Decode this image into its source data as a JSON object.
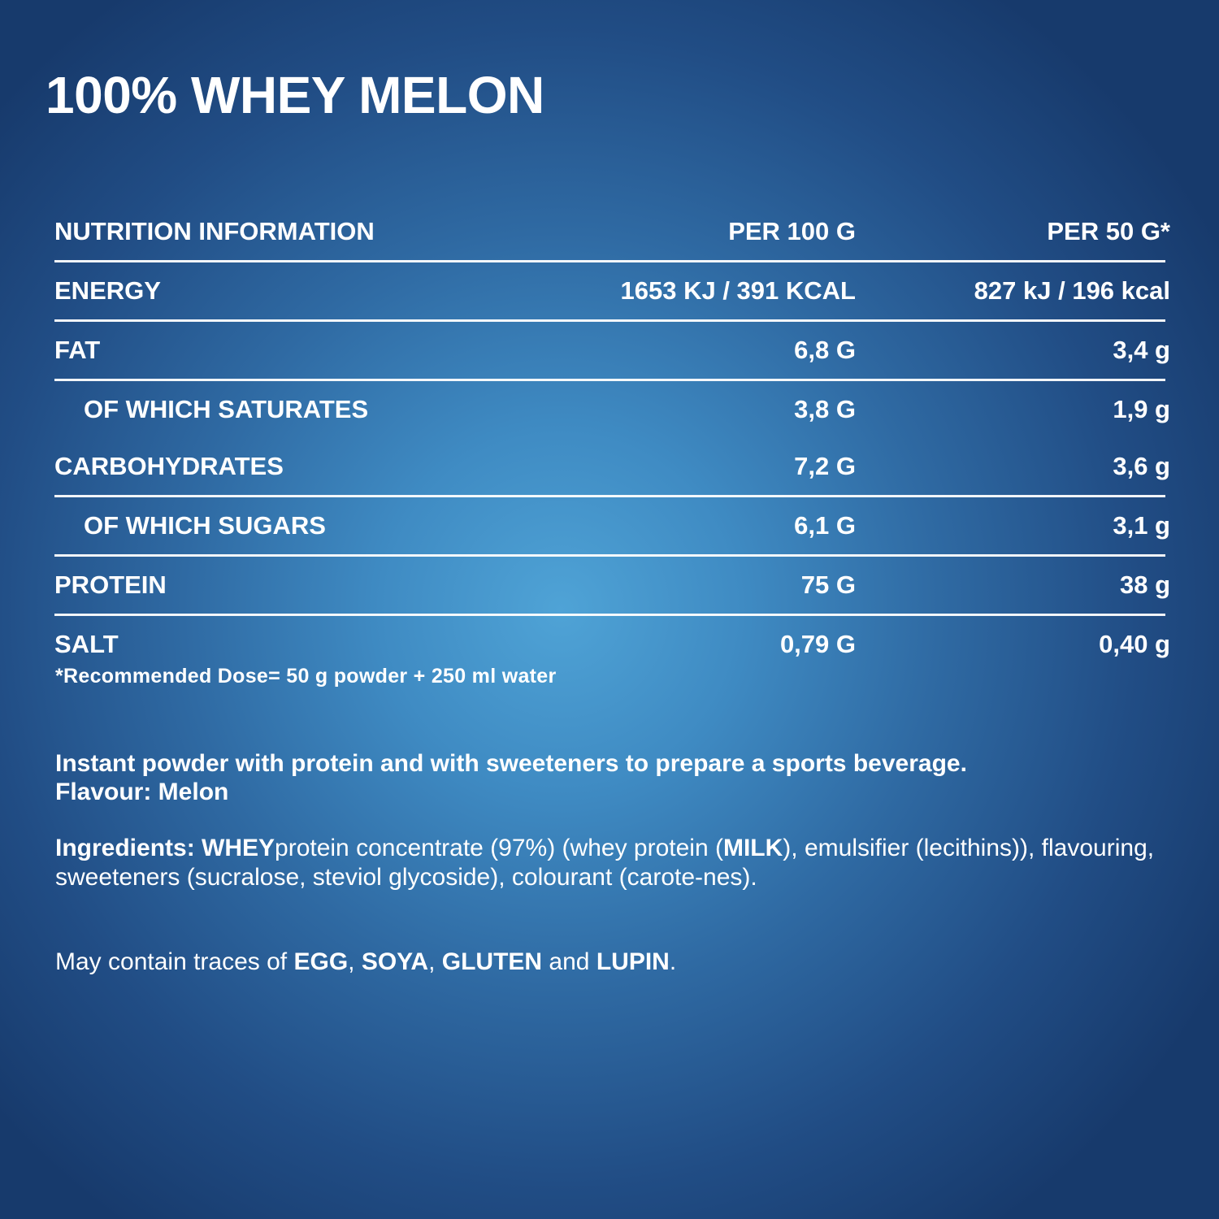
{
  "title": "100% WHEY MELON",
  "nutrition": {
    "header": {
      "label": "NUTRITION INFORMATION",
      "col1": "PER 100 G",
      "col2": "PER 50 G*"
    },
    "rows": [
      {
        "label": "ENERGY",
        "col1": "1653 KJ / 391 KCAL",
        "col2": "827 kJ / 196 kcal"
      },
      {
        "label": "FAT",
        "col1": "6,8 G",
        "col2": "3,4 g"
      },
      {
        "label": "OF WHICH SATURATES",
        "col1": "3,8 G",
        "col2": "1,9 g"
      },
      {
        "label": "CARBOHYDRATES",
        "col1": "7,2 G",
        "col2": "3,6 g"
      },
      {
        "label": "OF WHICH SUGARS",
        "col1": "6,1 G",
        "col2": "3,1 g"
      },
      {
        "label": "PROTEIN",
        "col1": "75 G",
        "col2": "38 g"
      },
      {
        "label": "SALT",
        "col1": "0,79 G",
        "col2": "0,40 g"
      }
    ]
  },
  "footnote": "*Recommended Dose= 50 g powder + 250 ml water",
  "description": {
    "line1": "Instant powder with protein and with sweeteners to prepare a sports beverage.",
    "line2": "Flavour: Melon"
  },
  "ingredients": {
    "prefix": "Ingredients: ",
    "allergen1": "WHEY",
    "part1": "protein concentrate (97%) (whey protein (",
    "allergen2": "MILK",
    "part2": "), emulsifier (lecithins)), flavouring, sweeteners (sucralose, steviol glycoside), colourant (carote-nes)."
  },
  "traces": {
    "prefix": "May contain traces of ",
    "a1": "EGG",
    "sep1": ", ",
    "a2": "SOYA",
    "sep2": ", ",
    "a3": "GLUTEN",
    "sep3": " and ",
    "a4": "LUPIN",
    "end": "."
  },
  "colors": {
    "text": "#ffffff",
    "background_center": "#4fa3d6",
    "background_edge": "#173a6c"
  }
}
